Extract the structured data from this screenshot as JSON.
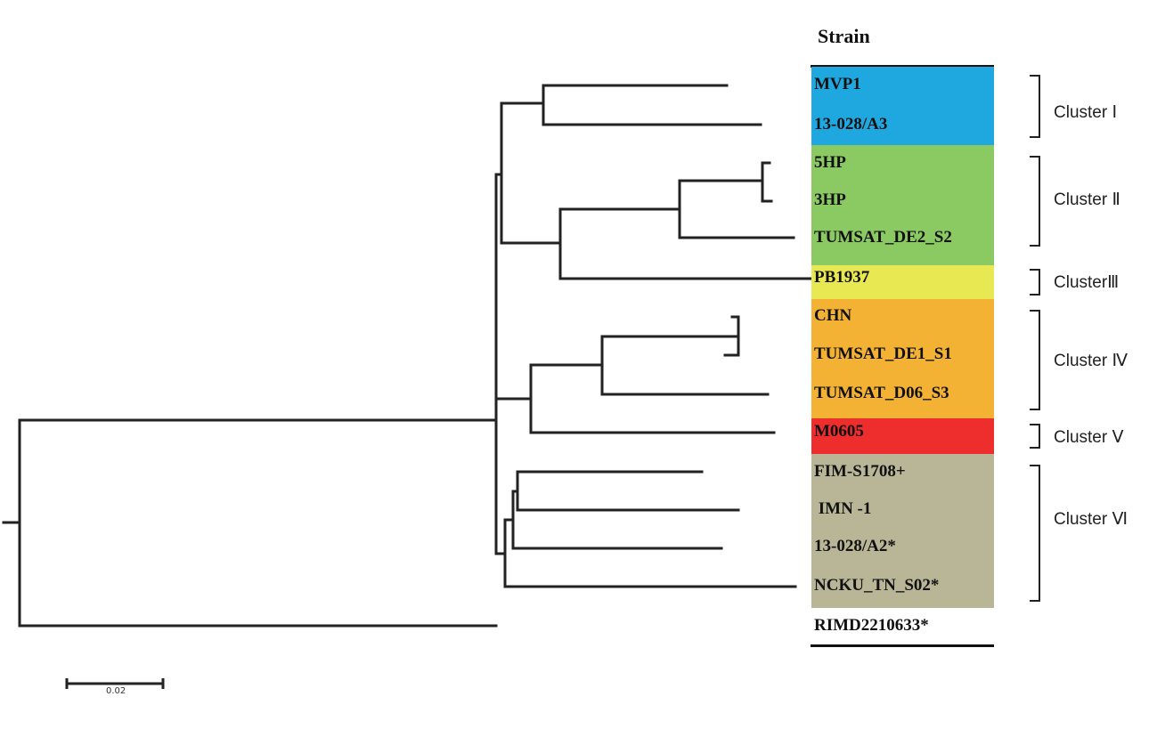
{
  "header": {
    "title": "Strain"
  },
  "scale_bar": {
    "label": "0.02",
    "value": 0.02
  },
  "colors": {
    "cluster_1": "#1fa8e0",
    "cluster_2": "#8bc963",
    "cluster_3": "#e8e852",
    "cluster_4": "#f3b234",
    "cluster_5": "#ee2d2d",
    "cluster_6": "#b9b597",
    "line": "#222222"
  },
  "strains": [
    {
      "name": "MVP1",
      "cluster": 1
    },
    {
      "name": "13-028/A3",
      "cluster": 1
    },
    {
      "name": "5HP",
      "cluster": 2
    },
    {
      "name": "3HP",
      "cluster": 2
    },
    {
      "name": "TUMSAT_DE2_S2",
      "cluster": 2
    },
    {
      "name": "PB1937",
      "cluster": 3
    },
    {
      "name": "CHN",
      "cluster": 4
    },
    {
      "name": "TUMSAT_DE1_S1",
      "cluster": 4
    },
    {
      "name": "TUMSAT_D06_S3",
      "cluster": 4
    },
    {
      "name": "M0605",
      "cluster": 5
    },
    {
      "name": "FIM-S1708+",
      "cluster": 6
    },
    {
      "name": " IMN -1",
      "cluster": 6
    },
    {
      "name": "13-028/A2*",
      "cluster": 6
    },
    {
      "name": "NCKU_TN_S02*",
      "cluster": 6
    },
    {
      "name": "RIMD2210633*",
      "cluster": 0
    }
  ],
  "clusters": [
    {
      "label": "Cluster Ⅰ"
    },
    {
      "label": "Cluster Ⅱ"
    },
    {
      "label": "ClusterⅢ"
    },
    {
      "label": "Cluster Ⅳ"
    },
    {
      "label": "Cluster Ⅴ"
    },
    {
      "label": "Cluster Ⅵ"
    }
  ]
}
